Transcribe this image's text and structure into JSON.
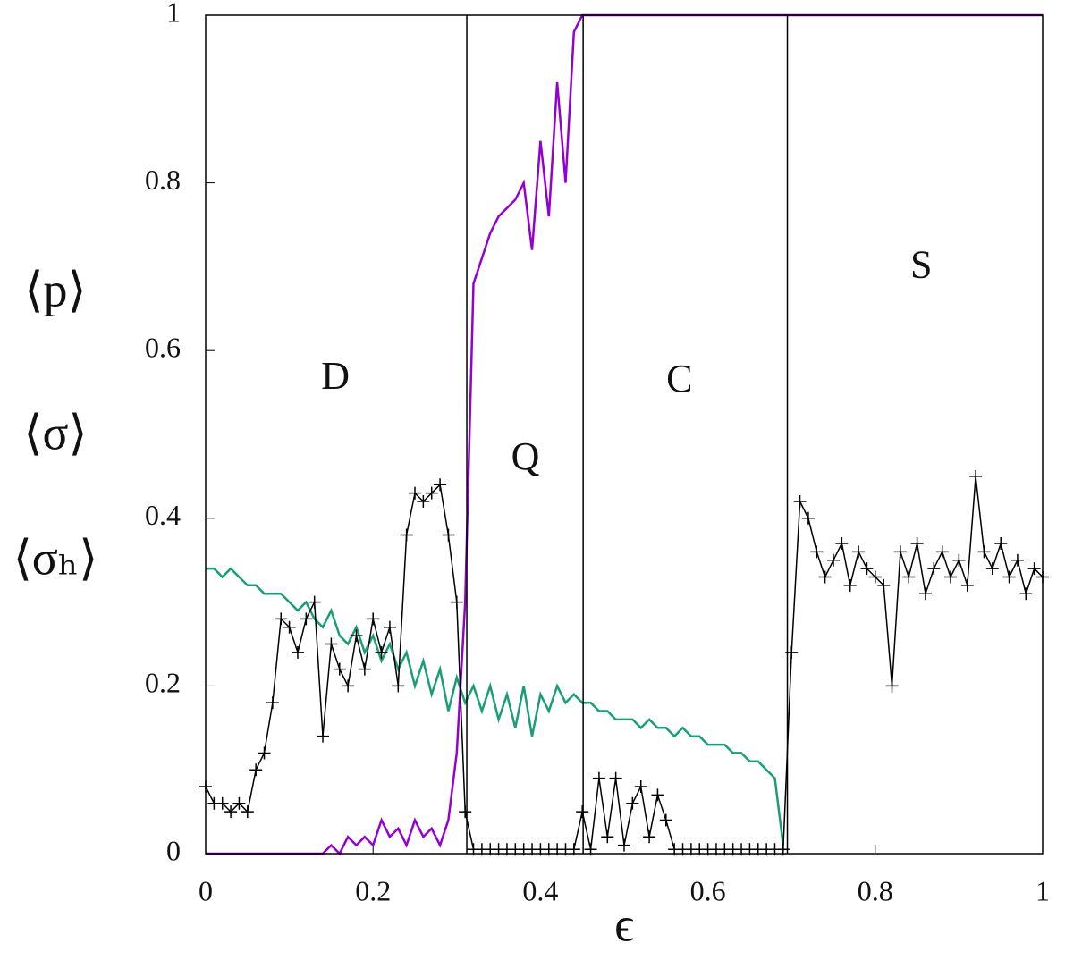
{
  "chart_data": {
    "type": "line",
    "xlabel": "ϵ",
    "ylabel": [
      "⟨p⟩",
      "⟨σ⟩",
      "⟨σₕ⟩"
    ],
    "xlim": [
      0,
      1
    ],
    "ylim": [
      0,
      1
    ],
    "xticks": [
      0,
      0.2,
      0.4,
      0.6,
      0.8,
      1
    ],
    "yticks": [
      0,
      0.2,
      0.4,
      0.6,
      0.8,
      1
    ],
    "boundaries": [
      0.312,
      0.451,
      0.695
    ],
    "annotations": [
      {
        "text": "D",
        "x": 0.155,
        "y": 0.565
      },
      {
        "text": "Q",
        "x": 0.382,
        "y": 0.469
      },
      {
        "text": "C",
        "x": 0.566,
        "y": 0.562
      },
      {
        "text": "S",
        "x": 0.855,
        "y": 0.698
      }
    ],
    "x": [
      0,
      0.01,
      0.02,
      0.03,
      0.04,
      0.05,
      0.06,
      0.07,
      0.08,
      0.09,
      0.1,
      0.11,
      0.12,
      0.13,
      0.14,
      0.15,
      0.16,
      0.17,
      0.18,
      0.19,
      0.2,
      0.21,
      0.22,
      0.23,
      0.24,
      0.25,
      0.26,
      0.27,
      0.28,
      0.29,
      0.3,
      0.31,
      0.32,
      0.33,
      0.34,
      0.35,
      0.36,
      0.37,
      0.38,
      0.39,
      0.4,
      0.41,
      0.42,
      0.43,
      0.44,
      0.45,
      0.46,
      0.47,
      0.48,
      0.49,
      0.5,
      0.51,
      0.52,
      0.53,
      0.54,
      0.55,
      0.56,
      0.57,
      0.58,
      0.59,
      0.6,
      0.61,
      0.62,
      0.63,
      0.64,
      0.65,
      0.66,
      0.67,
      0.68,
      0.69,
      0.7,
      0.71,
      0.72,
      0.73,
      0.74,
      0.75,
      0.76,
      0.77,
      0.78,
      0.79,
      0.8,
      0.81,
      0.82,
      0.83,
      0.84,
      0.85,
      0.86,
      0.87,
      0.88,
      0.89,
      0.9,
      0.91,
      0.92,
      0.93,
      0.94,
      0.95,
      0.96,
      0.97,
      0.98,
      0.99,
      1
    ],
    "series": [
      {
        "color": "#1a9e77",
        "values": [
          0.34,
          0.34,
          0.33,
          0.34,
          0.33,
          0.32,
          0.32,
          0.31,
          0.31,
          0.31,
          0.3,
          0.29,
          0.3,
          0.28,
          0.27,
          0.29,
          0.26,
          0.25,
          0.27,
          0.24,
          0.26,
          0.23,
          0.25,
          0.22,
          0.24,
          0.2,
          0.23,
          0.19,
          0.22,
          0.17,
          0.21,
          0.18,
          0.2,
          0.17,
          0.2,
          0.16,
          0.19,
          0.15,
          0.2,
          0.14,
          0.19,
          0.17,
          0.2,
          0.18,
          0.19,
          0.18,
          0.18,
          0.17,
          0.17,
          0.16,
          0.16,
          0.16,
          0.15,
          0.16,
          0.15,
          0.15,
          0.14,
          0.15,
          0.14,
          0.14,
          0.13,
          0.13,
          0.13,
          0.12,
          0.12,
          0.11,
          0.11,
          0.1,
          0.09,
          0.01,
          null,
          null,
          null,
          null,
          null,
          null,
          null,
          null,
          null,
          null,
          null,
          null,
          null,
          null,
          null,
          null,
          null,
          null,
          null,
          null,
          null,
          null,
          null,
          null,
          null,
          null,
          null,
          null,
          null,
          null,
          null
        ]
      },
      {
        "color": "#9400d3",
        "values": [
          0,
          0,
          0,
          0,
          0,
          0,
          0,
          0,
          0,
          0,
          0,
          0,
          0,
          0,
          0,
          0.01,
          0,
          0.02,
          0.01,
          0.02,
          0.01,
          0.04,
          0.02,
          0.03,
          0.01,
          0.04,
          0.02,
          0.03,
          0.01,
          0.04,
          0.12,
          0.3,
          0.68,
          0.71,
          0.74,
          0.76,
          0.77,
          0.78,
          0.8,
          0.72,
          0.85,
          0.76,
          0.92,
          0.8,
          0.98,
          1,
          1,
          1,
          1,
          1,
          1,
          1,
          1,
          1,
          1,
          1,
          1,
          1,
          1,
          1,
          1,
          1,
          1,
          1,
          1,
          1,
          1,
          1,
          1,
          1,
          1,
          1,
          1,
          1,
          1,
          1,
          1,
          1,
          1,
          1,
          1,
          1,
          1,
          1,
          1,
          1,
          1,
          1,
          1,
          1,
          1,
          1,
          1,
          1,
          1,
          1,
          1,
          1,
          1,
          1,
          1
        ]
      },
      {
        "color": "#000000",
        "marker": "+",
        "values": [
          0.08,
          0.06,
          0.06,
          0.05,
          0.06,
          0.05,
          0.1,
          0.12,
          0.18,
          0.28,
          0.27,
          0.24,
          0.28,
          0.3,
          0.14,
          0.25,
          0.22,
          0.2,
          0.26,
          0.22,
          0.28,
          0.24,
          0.27,
          0.2,
          0.38,
          0.43,
          0.42,
          0.43,
          0.44,
          0.38,
          0.3,
          0.05,
          0.005,
          0.005,
          0.005,
          0.005,
          0.005,
          0.005,
          0.005,
          0.005,
          0.005,
          0.005,
          0.005,
          0.005,
          0.005,
          0.05,
          0.005,
          0.09,
          0.02,
          0.09,
          0.01,
          0.06,
          0.08,
          0.02,
          0.07,
          0.04,
          0.005,
          0.005,
          0.005,
          0.005,
          0.005,
          0.005,
          0.005,
          0.005,
          0.005,
          0.005,
          0.005,
          0.005,
          0.005,
          0.005,
          0.24,
          0.42,
          0.4,
          0.36,
          0.33,
          0.35,
          0.37,
          0.32,
          0.36,
          0.34,
          0.33,
          0.32,
          0.2,
          0.36,
          0.33,
          0.37,
          0.31,
          0.34,
          0.36,
          0.33,
          0.35,
          0.32,
          0.45,
          0.36,
          0.34,
          0.37,
          0.33,
          0.35,
          0.31,
          0.34,
          0.33
        ]
      }
    ]
  }
}
